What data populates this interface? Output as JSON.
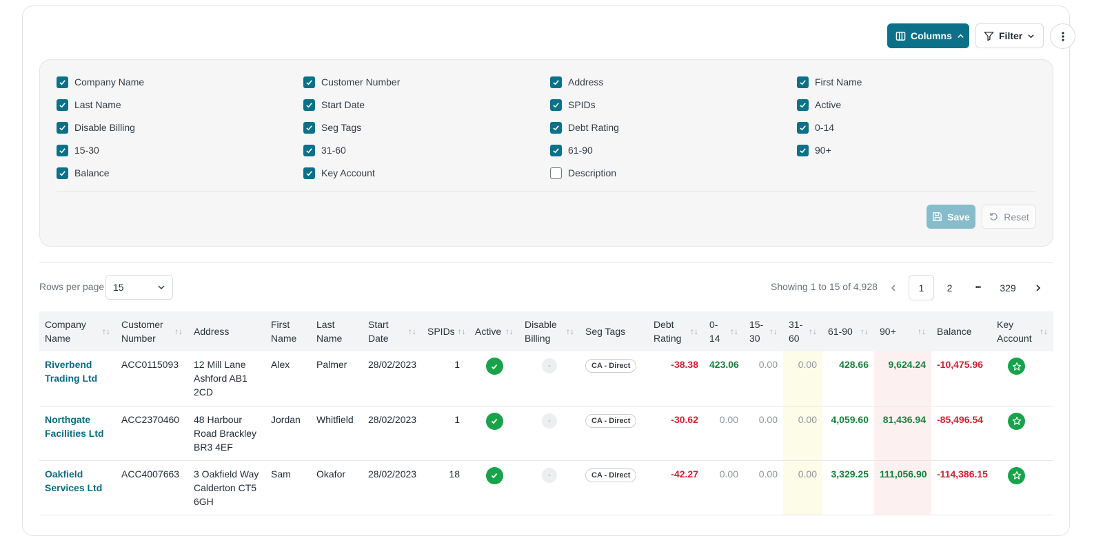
{
  "toolbar": {
    "columns_label": "Columns",
    "filter_label": "Filter"
  },
  "columns_panel": {
    "items": [
      {
        "label": "Company Name",
        "checked": true
      },
      {
        "label": "Customer Number",
        "checked": true
      },
      {
        "label": "Address",
        "checked": true
      },
      {
        "label": "First Name",
        "checked": true
      },
      {
        "label": "Last Name",
        "checked": true
      },
      {
        "label": "Start Date",
        "checked": true
      },
      {
        "label": "SPIDs",
        "checked": true
      },
      {
        "label": "Active",
        "checked": true
      },
      {
        "label": "Disable Billing",
        "checked": true
      },
      {
        "label": "Seg Tags",
        "checked": true
      },
      {
        "label": "Debt Rating",
        "checked": true
      },
      {
        "label": "0-14",
        "checked": true
      },
      {
        "label": "15-30",
        "checked": true
      },
      {
        "label": "31-60",
        "checked": true
      },
      {
        "label": "61-90",
        "checked": true
      },
      {
        "label": "90+",
        "checked": true
      },
      {
        "label": "Balance",
        "checked": true
      },
      {
        "label": "Key Account",
        "checked": true
      },
      {
        "label": "Description",
        "checked": false
      }
    ],
    "save_label": "Save",
    "reset_label": "Reset"
  },
  "pagination": {
    "rows_per_page_label": "Rows per page",
    "rows_per_page_value": "15",
    "showing_text": "Showing 1 to 15 of 4,928",
    "pages": [
      "1",
      "2",
      "329"
    ],
    "ellipsis": "•••",
    "current_page": "1"
  },
  "table": {
    "headers": {
      "company": "Company Name",
      "customer": "Customer Number",
      "address": "Address",
      "first": "First Name",
      "last": "Last Name",
      "start": "Start Date",
      "spids": "SPIDs",
      "active": "Active",
      "disable": "Disable Billing",
      "seg": "Seg Tags",
      "debt": "Debt Rating",
      "d0_14": "0-14",
      "d15_30": "15-30",
      "d31_60": "31-60",
      "d61_90": "61-90",
      "d90p": "90+",
      "balance": "Balance",
      "key": "Key Account"
    },
    "disable_placeholder": "-",
    "rows": [
      {
        "company": "Riverbend Trading Ltd",
        "customer": "ACC0115093",
        "address": "12 Mill Lane Ashford AB1 2CD",
        "first": "Alex",
        "last": "Palmer",
        "start": "28/02/2023",
        "spids": "1",
        "seg": "CA - Direct",
        "debt": "-38.38",
        "d0_14": "423.06",
        "d15_30": "0.00",
        "d31_60": "0.00",
        "d61_90": "428.66",
        "d90p": "9,624.24",
        "balance": "-10,475.96"
      },
      {
        "company": "Northgate Facilities Ltd",
        "customer": "ACC2370460",
        "address": "48 Harbour Road Brackley BR3 4EF",
        "first": "Jordan",
        "last": "Whitfield",
        "start": "28/02/2023",
        "spids": "1",
        "seg": "CA - Direct",
        "debt": "-30.62",
        "d0_14": "0.00",
        "d15_30": "0.00",
        "d31_60": "0.00",
        "d61_90": "4,059.60",
        "d90p": "81,436.94",
        "balance": "-85,496.54"
      },
      {
        "company": "Oakfield Services Ltd",
        "customer": "ACC4007663",
        "address": "3 Oakfield Way Calderton CT5 6GH",
        "first": "Sam",
        "last": "Okafor",
        "start": "28/02/2023",
        "spids": "18",
        "seg": "CA - Direct",
        "debt": "-42.27",
        "d0_14": "0.00",
        "d15_30": "0.00",
        "d31_60": "0.00",
        "d61_90": "3,329.25",
        "d90p": "111,056.90",
        "balance": "-114,386.15"
      }
    ]
  },
  "colors": {
    "primary": "#0b7189",
    "link": "#0b6b83",
    "negative": "#d3202f",
    "positive": "#16803a",
    "success": "#17a34a"
  }
}
